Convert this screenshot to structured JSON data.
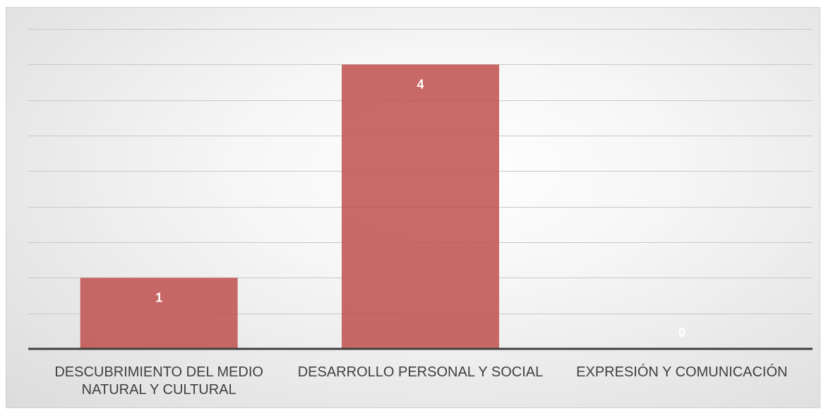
{
  "chart_data": {
    "type": "bar",
    "categories": [
      "DESCUBRIMIENTO DEL MEDIO NATURAL Y CULTURAL",
      "DESARROLLO PERSONAL Y SOCIAL",
      "EXPRESIÓN Y COMUNICACIÓN"
    ],
    "category_label_lines": [
      [
        "DESCUBRIMIENTO DEL MEDIO",
        "NATURAL Y CULTURAL"
      ],
      [
        "DESARROLLO PERSONAL Y SOCIAL"
      ],
      [
        "EXPRESIÓN Y COMUNICACIÓN"
      ]
    ],
    "values": [
      1,
      4,
      0
    ],
    "data_labels": [
      "1",
      "4",
      "0"
    ],
    "ylim": [
      0,
      4.5
    ],
    "gridline_step": 0.5,
    "title": "",
    "xlabel": "",
    "ylabel": "",
    "grid": true,
    "legend": "none",
    "bar_color": "#c0504d",
    "axis_color": "#404040",
    "grid_color": "#c8c8c8"
  }
}
